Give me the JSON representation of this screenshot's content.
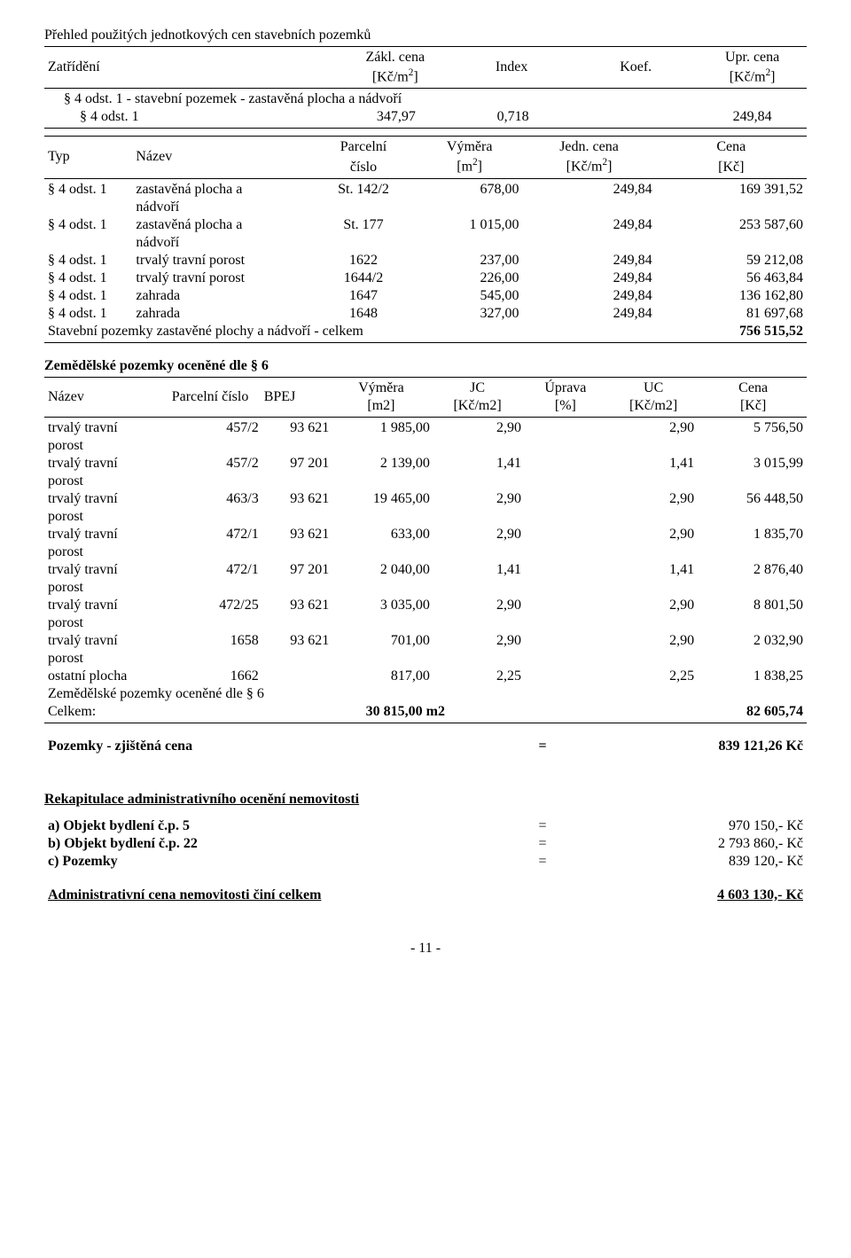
{
  "title1": "Přehled použitých jednotkových cen stavebních pozemků",
  "summaryHeader": {
    "c1": "Zatřídění",
    "c2a": "Zákl. cena",
    "c2b": "[Kč/m",
    "c2sup": "2",
    "c2c": "]",
    "c3": "Index",
    "c4": "Koef.",
    "c5a": "Upr. cena",
    "c5b": "[Kč/m",
    "c5sup": "2",
    "c5c": "]"
  },
  "summaryRows": [
    {
      "c1": "§ 4 odst. 1 - stavební pozemek - zastavěná plocha a nádvoří",
      "c2": "",
      "c3": "",
      "c4": "",
      "c5": ""
    },
    {
      "c1": "   § 4 odst. 1",
      "c2": "347,97",
      "c3": "0,718",
      "c4": "",
      "c5": "249,84"
    }
  ],
  "t2Header": {
    "c1": "Typ",
    "c2": "Název",
    "c3a": "Parcelní",
    "c3b": "číslo",
    "c4a": "Výměra",
    "c4b": "[m",
    "c4sup": "2",
    "c4c": "]",
    "c5a": "Jedn. cena",
    "c5b": "[Kč/m",
    "c5sup": "2",
    "c5c": "]",
    "c6a": "Cena",
    "c6b": "[Kč]"
  },
  "t2Rows": [
    {
      "c1": "§ 4 odst. 1",
      "c2": "zastavěná plocha a nádvoří",
      "c3": "St. 142/2",
      "c4": "678,00",
      "c5": "249,84",
      "c6": "169 391,52"
    },
    {
      "c1": "§ 4 odst. 1",
      "c2": "zastavěná plocha a nádvoří",
      "c3": "St. 177",
      "c4": "1 015,00",
      "c5": "249,84",
      "c6": "253 587,60"
    },
    {
      "c1": "§ 4 odst. 1",
      "c2": "trvalý travní porost",
      "c3": "1622",
      "c4": "237,00",
      "c5": "249,84",
      "c6": "59 212,08"
    },
    {
      "c1": "§ 4 odst. 1",
      "c2": "trvalý travní porost",
      "c3": "1644/2",
      "c4": "226,00",
      "c5": "249,84",
      "c6": "56 463,84"
    },
    {
      "c1": "§ 4 odst. 1",
      "c2": "zahrada",
      "c3": "1647",
      "c4": "545,00",
      "c5": "249,84",
      "c6": "136 162,80"
    },
    {
      "c1": "§ 4 odst. 1",
      "c2": "zahrada",
      "c3": "1648",
      "c4": "327,00",
      "c5": "249,84",
      "c6": "81 697,68"
    }
  ],
  "t2TotalLabel": "Stavební pozemky zastavěné plochy a nádvoří - celkem",
  "t2TotalValue": "756 515,52",
  "t3Title": "Zemědělské pozemky oceněné dle § 6",
  "t3Header": {
    "c1": "Název",
    "c2": "Parcelní číslo",
    "c3": "BPEJ",
    "c4a": "Výměra",
    "c4b": "[m2]",
    "c5a": "JC",
    "c5b": "[Kč/m2]",
    "c6a": "Úprava",
    "c6b": "[%]",
    "c7a": "UC",
    "c7b": "[Kč/m2]",
    "c8a": "Cena",
    "c8b": "[Kč]"
  },
  "t3Rows": [
    {
      "c1": "trvalý travní porost",
      "c2": "457/2",
      "c3": "93 621",
      "c4": "1 985,00",
      "c5": "2,90",
      "c6": "",
      "c7": "2,90",
      "c8": "5 756,50"
    },
    {
      "c1": "trvalý travní porost",
      "c2": "457/2",
      "c3": "97 201",
      "c4": "2 139,00",
      "c5": "1,41",
      "c6": "",
      "c7": "1,41",
      "c8": "3 015,99"
    },
    {
      "c1": "trvalý travní porost",
      "c2": "463/3",
      "c3": "93 621",
      "c4": "19 465,00",
      "c5": "2,90",
      "c6": "",
      "c7": "2,90",
      "c8": "56 448,50"
    },
    {
      "c1": "trvalý travní porost",
      "c2": "472/1",
      "c3": "93 621",
      "c4": "633,00",
      "c5": "2,90",
      "c6": "",
      "c7": "2,90",
      "c8": "1 835,70"
    },
    {
      "c1": "trvalý travní porost",
      "c2": "472/1",
      "c3": "97 201",
      "c4": "2 040,00",
      "c5": "1,41",
      "c6": "",
      "c7": "1,41",
      "c8": "2 876,40"
    },
    {
      "c1": "trvalý travní porost",
      "c2": "472/25",
      "c3": "93 621",
      "c4": "3 035,00",
      "c5": "2,90",
      "c6": "",
      "c7": "2,90",
      "c8": "8 801,50"
    },
    {
      "c1": "trvalý travní porost",
      "c2": "1658",
      "c3": "93 621",
      "c4": "701,00",
      "c5": "2,90",
      "c6": "",
      "c7": "2,90",
      "c8": "2 032,90"
    },
    {
      "c1": "ostatní plocha",
      "c2": "1662",
      "c3": "",
      "c4": "817,00",
      "c5": "2,25",
      "c6": "",
      "c7": "2,25",
      "c8": "1 838,25"
    }
  ],
  "t3SubLabel": "Zemědělské pozemky oceněné dle § 6",
  "t3CelkemLabel": "Celkem:",
  "t3CelkemArea": "30 815,00 m2",
  "t3CelkemValue": "82 605,74",
  "zjistena": {
    "label": "Pozemky - zjištěná cena",
    "eq": "=",
    "value": "839 121,26 Kč"
  },
  "rekapTitle": "Rekapitulace administrativního ocenění nemovitosti",
  "rekapRows": [
    {
      "label": "a) Objekt bydlení č.p. 5",
      "eq": "=",
      "value": "970 150,- Kč"
    },
    {
      "label": "b) Objekt bydlení č.p. 22",
      "eq": "=",
      "value": "2 793 860,- Kč"
    },
    {
      "label": "c) Pozemky",
      "eq": "=",
      "value": "839 120,- Kč"
    }
  ],
  "adminTotal": {
    "label": "Administrativní cena nemovitosti činí celkem",
    "value": "4 603 130,- Kč"
  },
  "pageNum": "- 11 -"
}
